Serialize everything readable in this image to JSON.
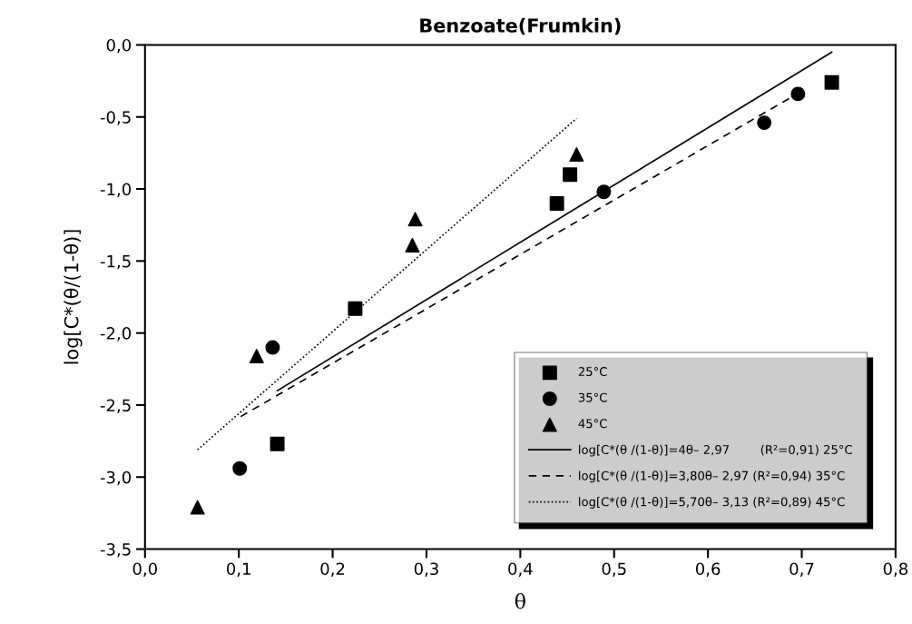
{
  "chart_data": {
    "type": "scatter",
    "title": "Benzoate(Frumkin)",
    "xlabel": "θ",
    "ylabel": "log[C*(θ/(1-θ)]",
    "xlim": [
      0,
      0.8
    ],
    "ylim": [
      -3.5,
      0
    ],
    "xticks": [
      {
        "value": 0,
        "label": "0,0"
      },
      {
        "value": 0.1,
        "label": "0,1"
      },
      {
        "value": 0.2,
        "label": "0,2"
      },
      {
        "value": 0.3,
        "label": "0,3"
      },
      {
        "value": 0.4,
        "label": "0,4"
      },
      {
        "value": 0.5,
        "label": "0,5"
      },
      {
        "value": 0.6,
        "label": "0,6"
      },
      {
        "value": 0.7,
        "label": "0,7"
      },
      {
        "value": 0.8,
        "label": "0,8"
      }
    ],
    "yticks": [
      {
        "value": -3.5,
        "label": "-3,5"
      },
      {
        "value": -3.0,
        "label": "-3,0"
      },
      {
        "value": -2.5,
        "label": "-2,5"
      },
      {
        "value": -2.0,
        "label": "-2,0"
      },
      {
        "value": -1.5,
        "label": "-1,5"
      },
      {
        "value": -1.0,
        "label": "-1,0"
      },
      {
        "value": -0.5,
        "label": "-0,5"
      },
      {
        "value": 0,
        "label": "0,0"
      }
    ],
    "grid": false,
    "legend": "bottom right",
    "series": [
      {
        "name": "25°C",
        "marker": "square",
        "color": "#000000",
        "x": [
          0.141,
          0.224,
          0.439,
          0.453,
          0.732
        ],
        "values": [
          -2.77,
          -1.83,
          -1.1,
          -0.9,
          -0.26
        ]
      },
      {
        "name": "35°C",
        "marker": "circle",
        "color": "#000000",
        "x": [
          0.101,
          0.136,
          0.489,
          0.66,
          0.696
        ],
        "values": [
          -2.94,
          -2.1,
          -1.02,
          -0.54,
          -0.34
        ]
      },
      {
        "name": "45°C",
        "marker": "triangle",
        "color": "#000000",
        "x": [
          0.056,
          0.119,
          0.285,
          0.288,
          0.46
        ],
        "values": [
          -3.21,
          -2.16,
          -1.39,
          -1.21,
          -0.76
        ]
      },
      {
        "name": "log[C*(θ /(1-θ)]=4θ– 2,97        (R²=0,91) 25°C",
        "type": "line",
        "line_style": "solid",
        "color": "#000000",
        "x": [
          0.141,
          0.732
        ],
        "values": [
          -2.4,
          -0.05
        ]
      },
      {
        "name": "log[C*(θ /(1-θ)]=3,80θ– 2,97 (R²=0,94) 35°C",
        "type": "line",
        "line_style": "dashed",
        "color": "#000000",
        "x": [
          0.102,
          0.687
        ],
        "values": [
          -2.58,
          -0.37
        ]
      },
      {
        "name": "log[C*(θ /(1-θ)]=5,70θ– 3,13 (R²=0,89) 45°C",
        "type": "line",
        "line_style": "dotted",
        "color": "#000000",
        "x": [
          0.056,
          0.46
        ],
        "values": [
          -2.81,
          -0.51
        ]
      }
    ]
  }
}
